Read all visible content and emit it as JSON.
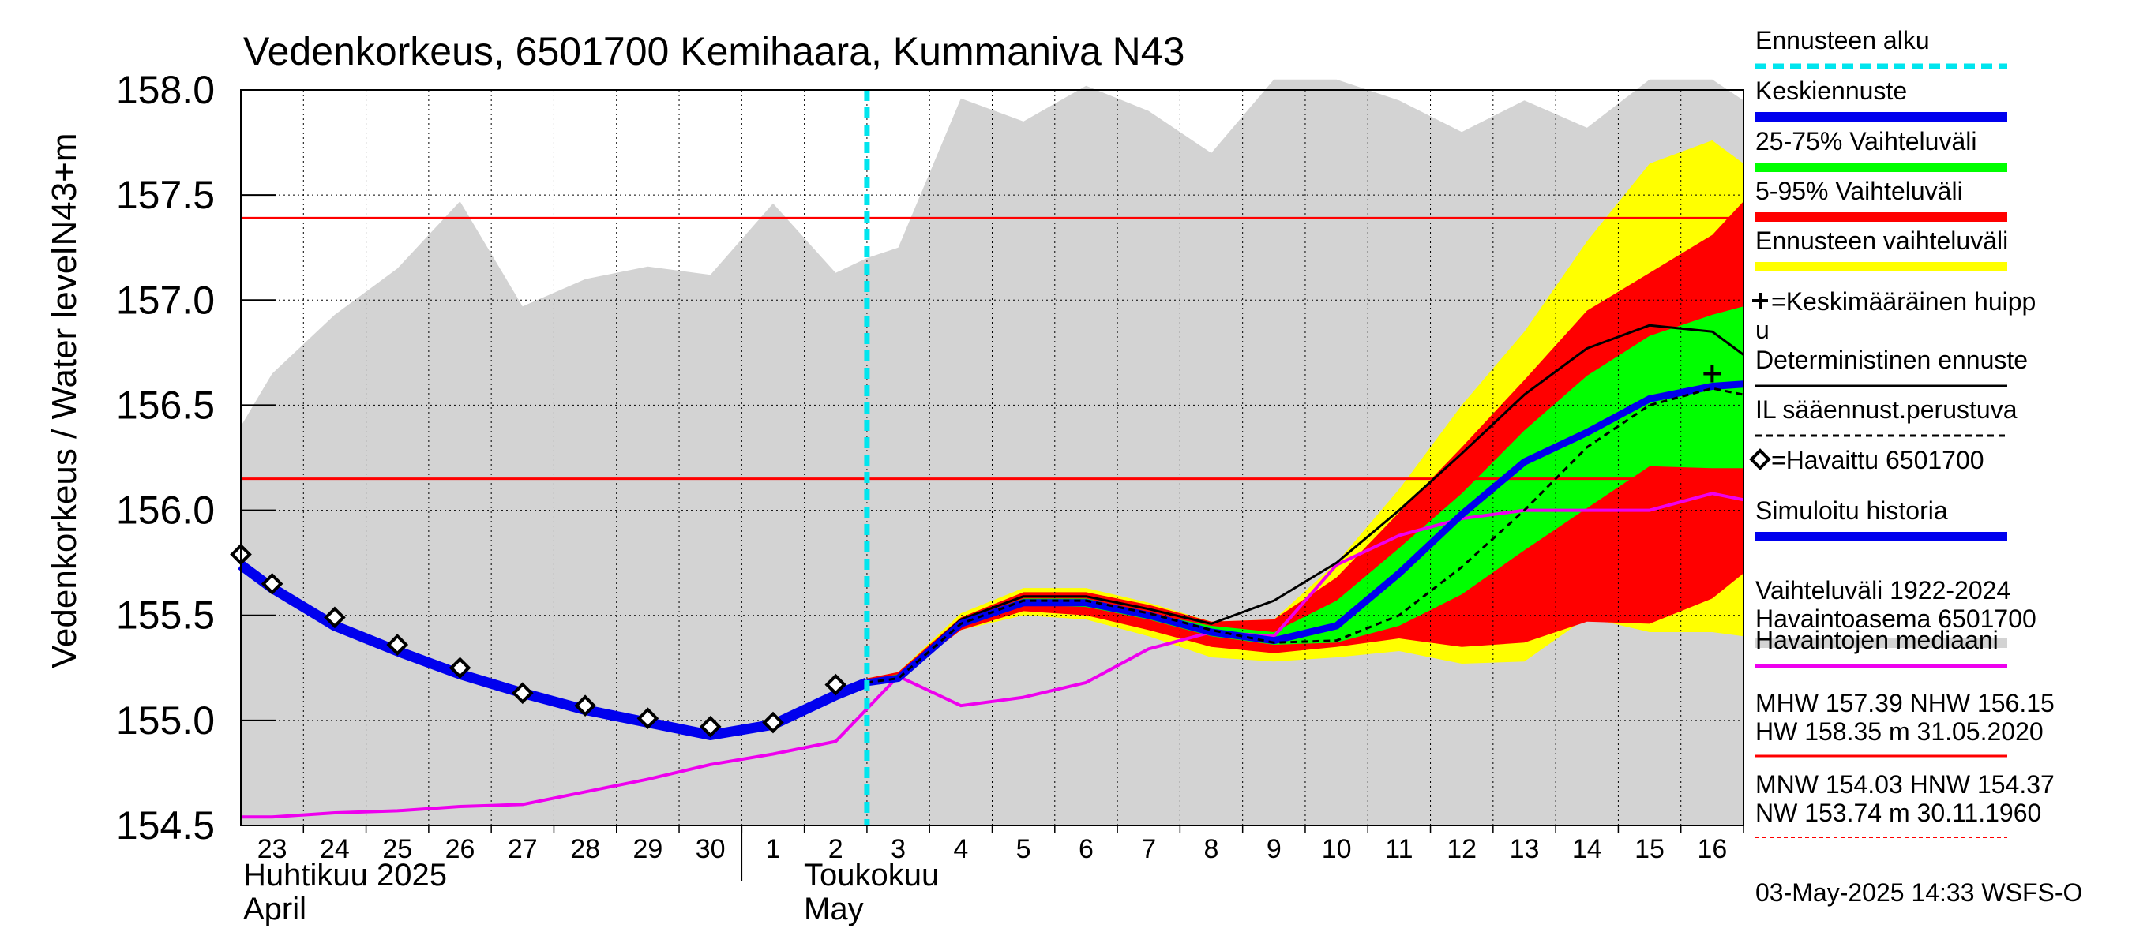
{
  "chart_data": {
    "type": "line",
    "title": "Vedenkorkeus, 6501700 Kemihaara, Kummaniva N43",
    "ylabel_outer": "Vedenkorkeus / Water level",
    "ylabel_inner": "N43+m",
    "ylim": [
      154.5,
      158.0
    ],
    "yticks": [
      "154.5",
      "155.0",
      "155.5",
      "156.0",
      "156.5",
      "157.0",
      "157.5",
      "158.0"
    ],
    "xlim": [
      -0.5,
      23.5
    ],
    "x_day_labels": [
      "23",
      "24",
      "25",
      "26",
      "27",
      "28",
      "29",
      "30",
      "1",
      "2",
      "3",
      "4",
      "5",
      "6",
      "7",
      "8",
      "9",
      "10",
      "11",
      "12",
      "13",
      "14",
      "15",
      "16"
    ],
    "month_labels": [
      {
        "line1": "Huhtikuu  2025",
        "line2": "April"
      },
      {
        "line1": "Toukokuu",
        "line2": "May"
      }
    ],
    "forecast_start_x": 9.5,
    "reference_lines": [
      157.39,
      156.15
    ],
    "history_range": {
      "x": [
        -0.5,
        0,
        1,
        2,
        3,
        4,
        5,
        6,
        7,
        8,
        9,
        9.5,
        10,
        11,
        12,
        13,
        14,
        15,
        16,
        17,
        18,
        19,
        20,
        21,
        22,
        23,
        23.5
      ],
      "lower": [
        154.5,
        154.5,
        154.5,
        154.5,
        154.5,
        154.5,
        154.5,
        154.5,
        154.5,
        154.5,
        154.5,
        154.5,
        154.5,
        154.5,
        154.5,
        154.5,
        154.5,
        154.5,
        154.5,
        154.5,
        154.5,
        154.5,
        154.5,
        154.5,
        154.5,
        154.5,
        154.5
      ],
      "upper": [
        156.4,
        156.65,
        156.93,
        157.15,
        157.47,
        156.97,
        157.1,
        157.16,
        157.12,
        157.46,
        157.13,
        157.2,
        157.25,
        157.96,
        157.85,
        158.02,
        157.9,
        157.7,
        158.05,
        158.05,
        157.95,
        157.8,
        157.95,
        157.82,
        158.05,
        158.05,
        157.95
      ]
    },
    "forecast_range_full": {
      "x": [
        9.5,
        10,
        11,
        12,
        13,
        14,
        15,
        16,
        17,
        18,
        19,
        20,
        21,
        22,
        23,
        23.5
      ],
      "lower": [
        155.17,
        155.2,
        155.43,
        155.5,
        155.48,
        155.4,
        155.3,
        155.28,
        155.3,
        155.33,
        155.27,
        155.28,
        155.49,
        155.42,
        155.42,
        155.4
      ],
      "upper": [
        155.2,
        155.23,
        155.51,
        155.63,
        155.63,
        155.56,
        155.47,
        155.48,
        155.75,
        156.1,
        156.5,
        156.85,
        157.28,
        157.65,
        157.76,
        157.65
      ]
    },
    "forecast_range_5_95": {
      "x": [
        9.5,
        10,
        11,
        12,
        13,
        14,
        15,
        16,
        17,
        18,
        19,
        20,
        21,
        22,
        23,
        23.5
      ],
      "lower": [
        155.17,
        155.2,
        155.43,
        155.52,
        155.5,
        155.43,
        155.35,
        155.32,
        155.35,
        155.39,
        155.35,
        155.37,
        155.47,
        155.46,
        155.58,
        155.7
      ],
      "upper": [
        155.2,
        155.23,
        155.49,
        155.61,
        155.61,
        155.55,
        155.47,
        155.48,
        155.68,
        155.99,
        156.3,
        156.62,
        156.95,
        157.13,
        157.31,
        157.47
      ]
    },
    "forecast_range_25_75": {
      "x": [
        9.5,
        10,
        11,
        12,
        13,
        14,
        15,
        16,
        17,
        18,
        19,
        20,
        21,
        22,
        23,
        23.5
      ],
      "lower": [
        155.18,
        155.21,
        155.45,
        155.55,
        155.54,
        155.48,
        155.4,
        155.36,
        155.37,
        155.45,
        155.6,
        155.81,
        156.01,
        156.21,
        156.2,
        156.2
      ],
      "upper": [
        155.19,
        155.22,
        155.47,
        155.58,
        155.58,
        155.51,
        155.45,
        155.42,
        155.57,
        155.82,
        156.08,
        156.38,
        156.64,
        156.83,
        156.93,
        156.97
      ]
    },
    "series": [
      {
        "name": "Keskiennuste",
        "color": "#0000ee",
        "x": [
          9.5,
          10,
          11,
          12,
          13,
          14,
          15,
          16,
          17,
          18,
          19,
          20,
          21,
          22,
          23,
          23.5
        ],
        "y": [
          155.18,
          155.2,
          155.46,
          155.56,
          155.56,
          155.5,
          155.42,
          155.38,
          155.45,
          155.7,
          155.98,
          156.23,
          156.37,
          156.53,
          156.59,
          156.6
        ]
      },
      {
        "name": "Deterministinen ennuste",
        "color": "#000000",
        "x": [
          9.5,
          10,
          11,
          12,
          13,
          14,
          15,
          16,
          17,
          18,
          19,
          20,
          21,
          22,
          23,
          23.5
        ],
        "y": [
          155.18,
          155.21,
          155.48,
          155.59,
          155.59,
          155.53,
          155.46,
          155.57,
          155.75,
          156.0,
          156.27,
          156.55,
          156.77,
          156.88,
          156.85,
          156.74
        ]
      },
      {
        "name": "IL sääennust.perustuva",
        "color": "#000000",
        "x": [
          9.5,
          10,
          11,
          12,
          13,
          14,
          15,
          16,
          17,
          18,
          19,
          20,
          21,
          22,
          23,
          23.5
        ],
        "y": [
          155.18,
          155.2,
          155.46,
          155.57,
          155.57,
          155.51,
          155.43,
          155.37,
          155.38,
          155.5,
          155.73,
          156.0,
          156.3,
          156.5,
          156.58,
          156.55
        ]
      },
      {
        "name": "Simuloitu historia",
        "color": "#0000ee",
        "x": [
          -0.5,
          0,
          1,
          2,
          3,
          4,
          5,
          6,
          7,
          8,
          9,
          9.5
        ],
        "y": [
          155.74,
          155.63,
          155.45,
          155.33,
          155.22,
          155.13,
          155.05,
          154.99,
          154.93,
          154.98,
          155.12,
          155.18
        ]
      },
      {
        "name": "Havaittu 6501700",
        "color": "#000000",
        "x": [
          -0.5,
          0,
          1,
          2,
          3,
          4,
          5,
          6,
          7,
          8,
          9
        ],
        "y": [
          155.79,
          155.65,
          155.49,
          155.36,
          155.25,
          155.13,
          155.07,
          155.01,
          154.97,
          154.99,
          155.17
        ]
      },
      {
        "name": "Havaintojen mediaani",
        "color": "#ee00ee",
        "x": [
          -0.5,
          0,
          1,
          2,
          3,
          4,
          5,
          6,
          7,
          8,
          9,
          10,
          11,
          12,
          13,
          14,
          15,
          16,
          17,
          18,
          19,
          20,
          21,
          22,
          23,
          23.5
        ],
        "y": [
          154.54,
          154.54,
          154.56,
          154.57,
          154.59,
          154.6,
          154.66,
          154.72,
          154.79,
          154.84,
          154.9,
          155.21,
          155.07,
          155.11,
          155.18,
          155.34,
          155.42,
          155.4,
          155.74,
          155.88,
          155.96,
          156.0,
          156.0,
          156.0,
          156.08,
          156.05
        ]
      }
    ],
    "peak_marker": {
      "x": 23,
      "y": 156.65
    },
    "legend": [
      {
        "key": "ennusteen-alku",
        "label": "Ennusteen alku",
        "color": "#00e5ee",
        "style": "dashed"
      },
      {
        "key": "keskiennuste",
        "label": "Keskiennuste",
        "color": "#0000ee",
        "style": "thick"
      },
      {
        "key": "vaihtelu-25-75",
        "label": "25-75% Vaihteluväli",
        "color": "#00ff00",
        "style": "thick"
      },
      {
        "key": "vaihtelu-5-95",
        "label": "5-95% Vaihteluväli",
        "color": "#ff0000",
        "style": "thick"
      },
      {
        "key": "ennusteen-vaihteluvali",
        "label": "Ennusteen vaihteluväli",
        "color": "#ffff00",
        "style": "thick"
      },
      {
        "key": "keskimaarainen-huippu",
        "label_line1": "=Keskimääräinen huipp",
        "label_line2": "u",
        "color": "#000000",
        "style": "plus"
      },
      {
        "key": "deterministinen",
        "label": "Deterministinen ennuste",
        "color": "#000000",
        "style": "thin"
      },
      {
        "key": "il-saaennuste",
        "label": "IL sääennust.perustuva",
        "color": "#000000",
        "style": "dashed-thin"
      },
      {
        "key": "havaittu",
        "label": "=Havaittu 6501700",
        "color": "#000000",
        "style": "diamond"
      },
      {
        "key": "simuloitu",
        "label": "Simuloitu historia",
        "color": "#0000ee",
        "style": "thick"
      },
      {
        "key": "vaihteluvali-hist",
        "label_line1": "Vaihteluväli 1922-2024",
        "label_line2": " Havaintoasema 6501700",
        "color": "#d3d3d3",
        "style": "thick"
      },
      {
        "key": "mediaani",
        "label": "Havaintojen mediaani",
        "color": "#ee00ee",
        "style": "medium"
      },
      {
        "key": "mhw",
        "label_line1": "MHW 157.39 NHW 156.15",
        "label_line2": "HW 158.35 m 31.05.2020",
        "color": "#ff0000",
        "style": "thin"
      },
      {
        "key": "mnw",
        "label_line1": "MNW 154.03 HNW 154.37",
        "label_line2": "NW 153.74 m 30.11.1960",
        "color": "#ff0000",
        "style": "dotted"
      }
    ],
    "footer": "03-May-2025 14:33 WSFS-O"
  }
}
